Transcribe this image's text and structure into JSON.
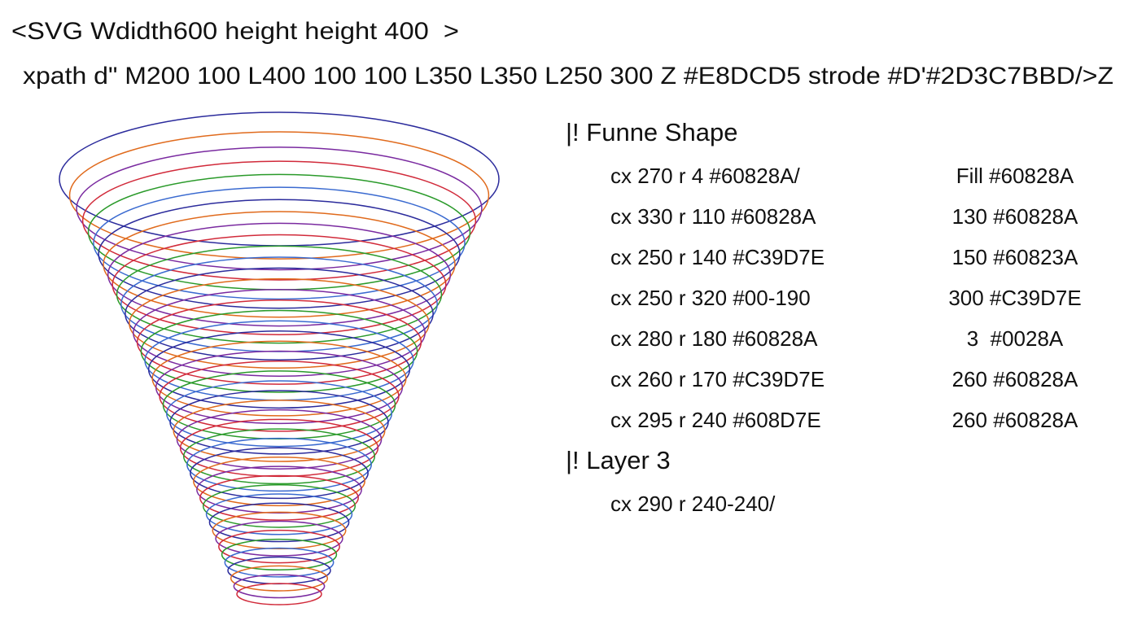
{
  "header": {
    "line1": "<SVG Wdidth600 height height 400  >",
    "line2": "xpath d\" M200 100 L400 100 100 L350 L350 L250 300 Z #E8DCD5 strode #D'#2D3C7BBD/>Z"
  },
  "sections": [
    {
      "title": "|! Funne Shape",
      "rows": [
        [
          "cx 270 r 4 #60828A/",
          "Fill #60828A"
        ],
        [
          "cx 330 r 110 #60828A",
          "130 #60828A"
        ],
        [
          "cx 250 r 140 #C39D7E",
          "150 #60823A"
        ],
        [
          "cx 250 r 320 #00-190",
          "300 #C39D7E"
        ],
        [
          "cx 280 r 180 #60828A",
          "3  #0028A"
        ],
        [
          "cx 260 r 170 #C39D7E",
          "260 #60828A"
        ],
        [
          "cx 295 r 240 #608D7E",
          "260 #60828A"
        ]
      ]
    },
    {
      "title": "|! Layer 3",
      "rows": [
        [
          "cx 290 r 240-240/"
        ]
      ]
    }
  ]
}
